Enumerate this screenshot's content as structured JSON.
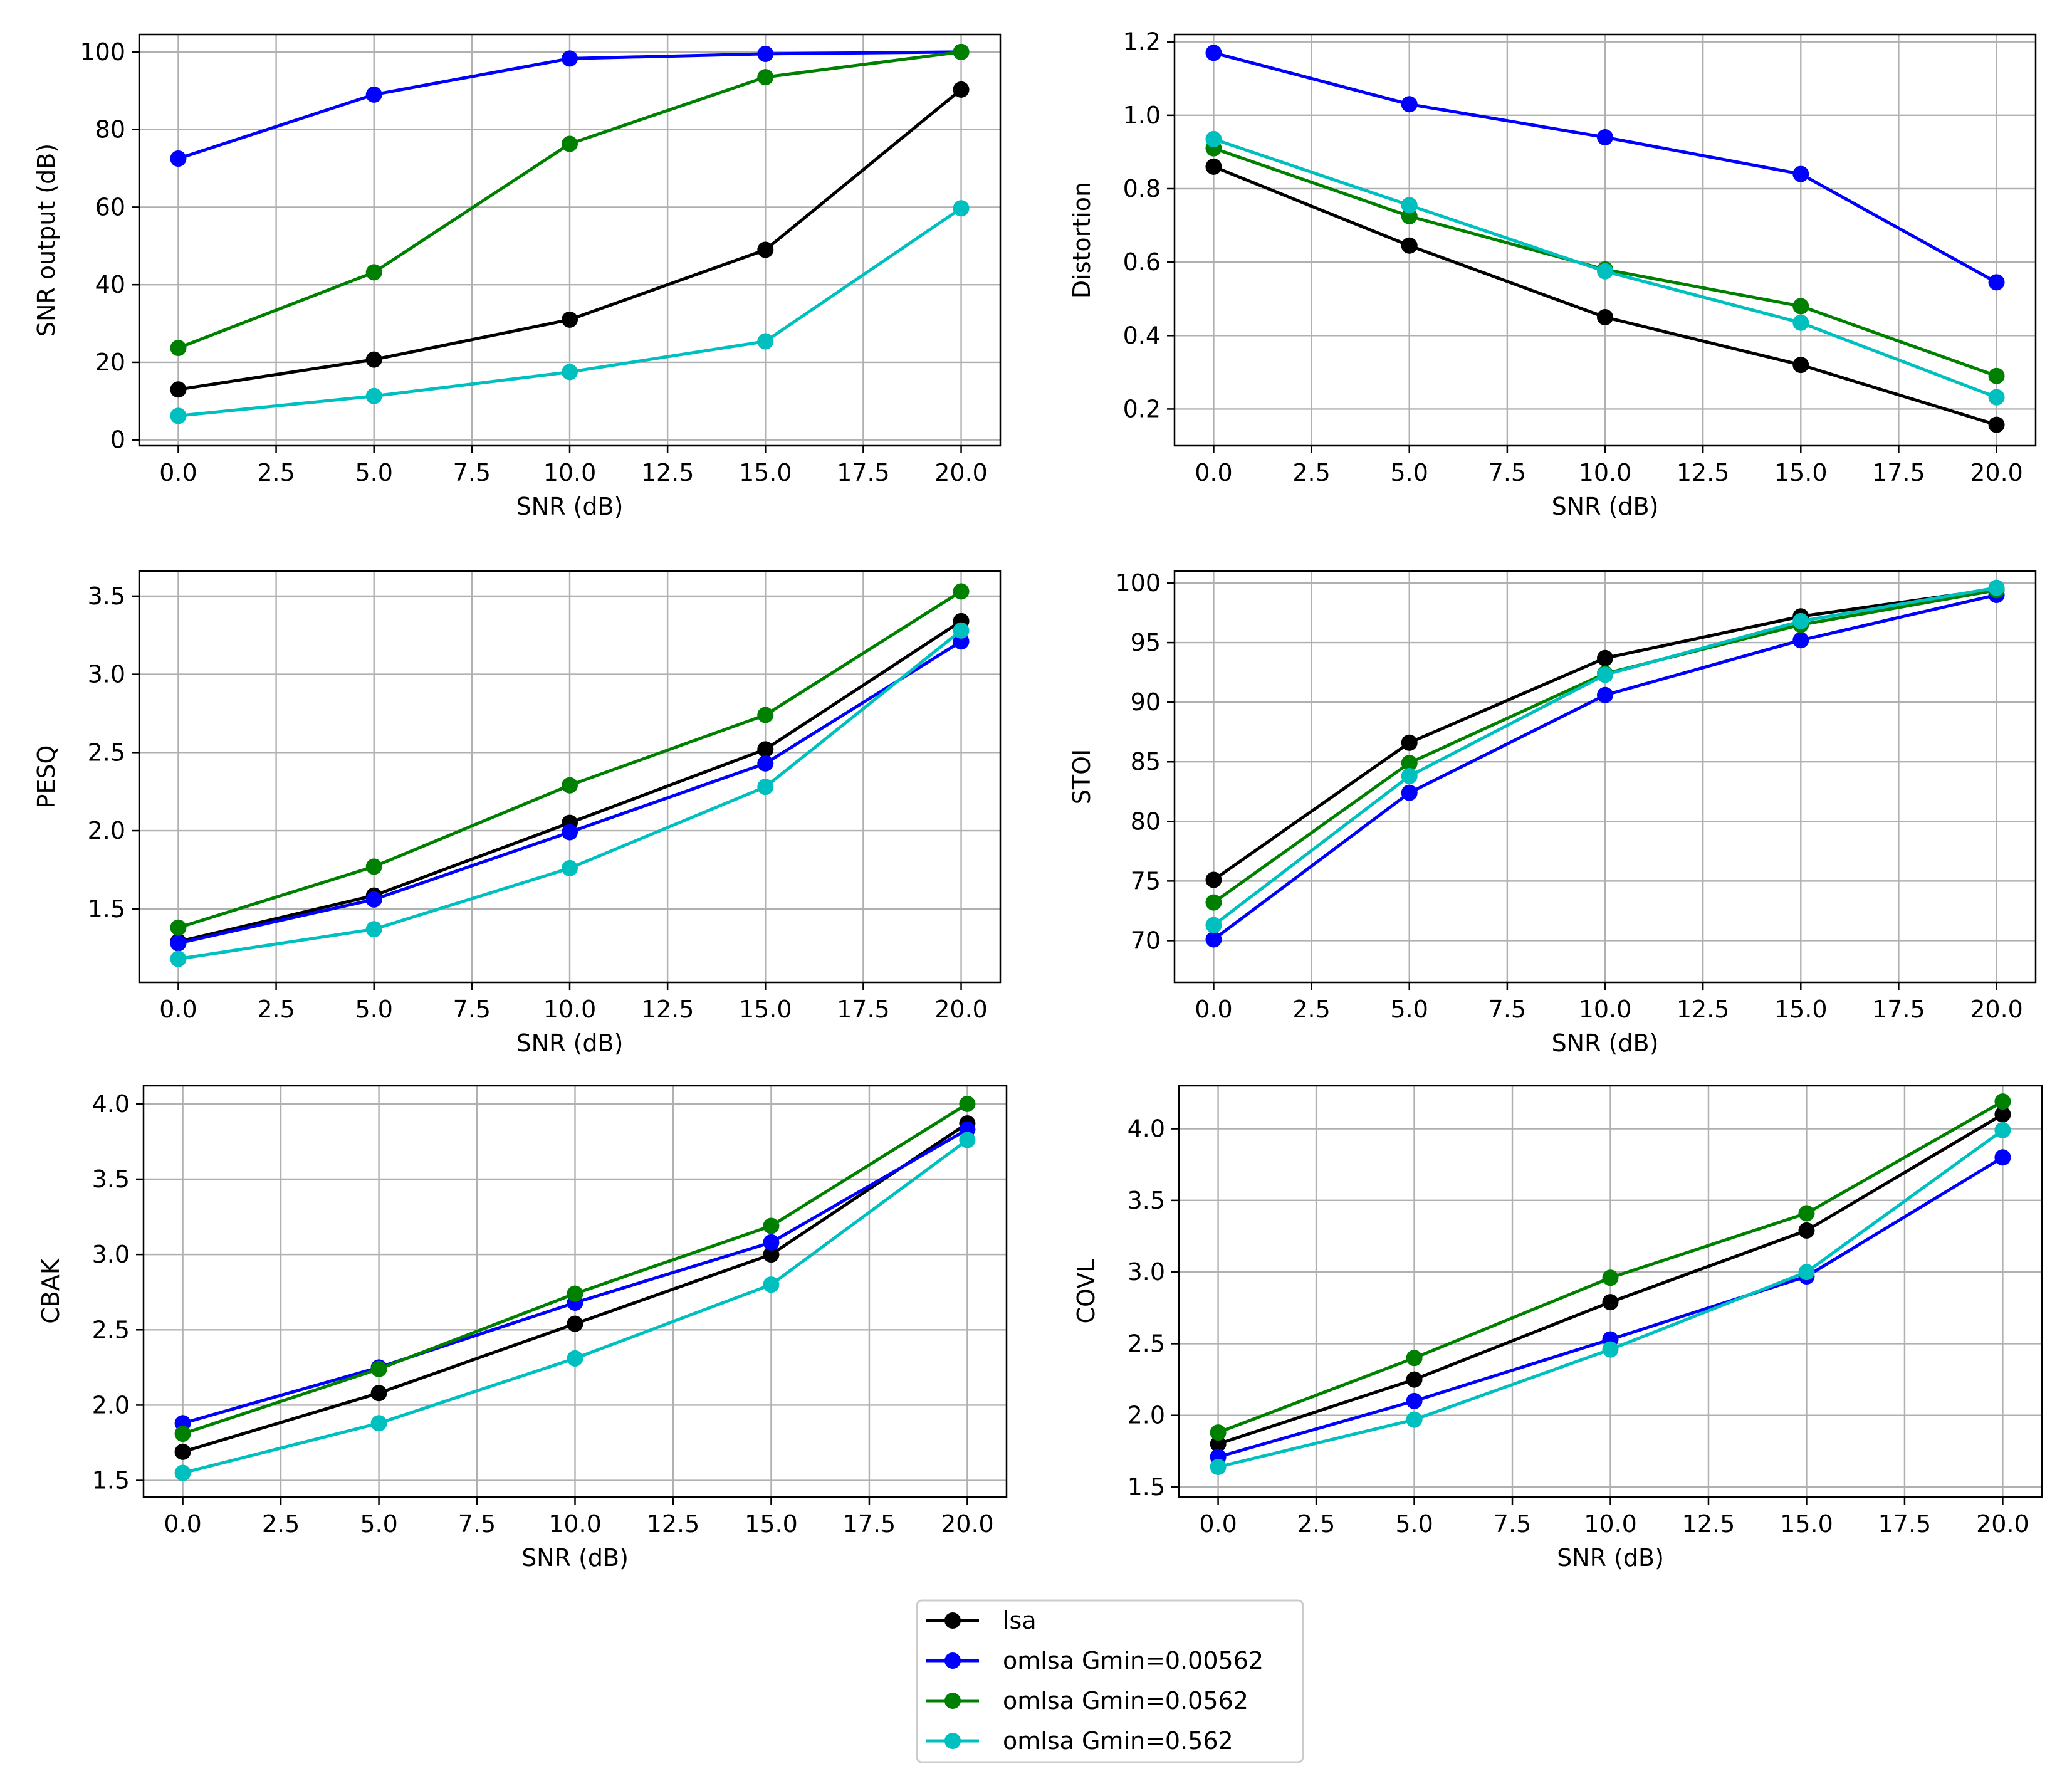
{
  "colors": {
    "lsa": "#000000",
    "omlsa_00562": "#0000ff",
    "omlsa_0562": "#008000",
    "omlsa_562": "#00bfbf",
    "grid": "#b0b0b0"
  },
  "legend": {
    "placement": "bottom-center",
    "entries": [
      "lsa",
      "omlsa Gmin=0.00562",
      "omlsa Gmin=0.0562",
      "omlsa Gmin=0.562"
    ]
  },
  "chart_data": [
    {
      "type": "line",
      "title": "",
      "xlabel": "SNR (dB)",
      "ylabel": "SNR output (dB)",
      "x": [
        0,
        5,
        10,
        15,
        20
      ],
      "xlim": [
        -1,
        21
      ],
      "ylim": [
        -1.5,
        104.5
      ],
      "xticks": [
        0,
        2.5,
        5,
        7.5,
        10,
        12.5,
        15,
        17.5,
        20
      ],
      "xtick_labels": [
        "0.0",
        "2.5",
        "5.0",
        "7.5",
        "10.0",
        "12.5",
        "15.0",
        "17.5",
        "20.0"
      ],
      "yticks": [
        0,
        20,
        40,
        60,
        80,
        100
      ],
      "ytick_labels": [
        "0",
        "20",
        "40",
        "60",
        "80",
        "100"
      ],
      "grid": true,
      "series": [
        {
          "name": "lsa",
          "values": [
            13,
            20.7,
            31,
            49,
            90.3
          ]
        },
        {
          "name": "omlsa Gmin=0.00562",
          "values": [
            72.5,
            89,
            98.3,
            99.5,
            100
          ]
        },
        {
          "name": "omlsa Gmin=0.0562",
          "values": [
            23.7,
            43.2,
            76.3,
            93.5,
            100
          ]
        },
        {
          "name": "omlsa Gmin=0.562",
          "values": [
            6.2,
            11.3,
            17.5,
            25.4,
            59.7
          ]
        }
      ]
    },
    {
      "type": "line",
      "title": "",
      "xlabel": "SNR (dB)",
      "ylabel": "Distortion",
      "x": [
        0,
        5,
        10,
        15,
        20
      ],
      "xlim": [
        -1,
        21
      ],
      "ylim": [
        0.1,
        1.22
      ],
      "xticks": [
        0,
        2.5,
        5,
        7.5,
        10,
        12.5,
        15,
        17.5,
        20
      ],
      "xtick_labels": [
        "0.0",
        "2.5",
        "5.0",
        "7.5",
        "10.0",
        "12.5",
        "15.0",
        "17.5",
        "20.0"
      ],
      "yticks": [
        0.2,
        0.4,
        0.6,
        0.8,
        1.0,
        1.2
      ],
      "ytick_labels": [
        "0.2",
        "0.4",
        "0.6",
        "0.8",
        "1.0",
        "1.2"
      ],
      "grid": true,
      "series": [
        {
          "name": "lsa",
          "values": [
            0.86,
            0.645,
            0.45,
            0.32,
            0.157
          ]
        },
        {
          "name": "omlsa Gmin=0.00562",
          "values": [
            1.17,
            1.03,
            0.94,
            0.84,
            0.545
          ]
        },
        {
          "name": "omlsa Gmin=0.0562",
          "values": [
            0.91,
            0.725,
            0.58,
            0.48,
            0.29
          ]
        },
        {
          "name": "omlsa Gmin=0.562",
          "values": [
            0.935,
            0.755,
            0.575,
            0.435,
            0.232
          ]
        }
      ]
    },
    {
      "type": "line",
      "title": "",
      "xlabel": "SNR (dB)",
      "ylabel": "PESQ",
      "x": [
        0,
        5,
        10,
        15,
        20
      ],
      "xlim": [
        -1,
        21
      ],
      "ylim": [
        1.03,
        3.66
      ],
      "xticks": [
        0,
        2.5,
        5,
        7.5,
        10,
        12.5,
        15,
        17.5,
        20
      ],
      "xtick_labels": [
        "0.0",
        "2.5",
        "5.0",
        "7.5",
        "10.0",
        "12.5",
        "15.0",
        "17.5",
        "20.0"
      ],
      "yticks": [
        1.5,
        2.0,
        2.5,
        3.0,
        3.5
      ],
      "ytick_labels": [
        "1.5",
        "2.0",
        "2.5",
        "3.0",
        "3.5"
      ],
      "grid": true,
      "series": [
        {
          "name": "lsa",
          "values": [
            1.29,
            1.585,
            2.05,
            2.52,
            3.34
          ]
        },
        {
          "name": "omlsa Gmin=0.00562",
          "values": [
            1.28,
            1.56,
            1.99,
            2.43,
            3.21
          ]
        },
        {
          "name": "omlsa Gmin=0.0562",
          "values": [
            1.38,
            1.77,
            2.29,
            2.74,
            3.53
          ]
        },
        {
          "name": "omlsa Gmin=0.562",
          "values": [
            1.18,
            1.37,
            1.76,
            2.28,
            3.28
          ]
        }
      ]
    },
    {
      "type": "line",
      "title": "",
      "xlabel": "SNR (dB)",
      "ylabel": "STOI",
      "x": [
        0,
        5,
        10,
        15,
        20
      ],
      "xlim": [
        -1,
        21
      ],
      "ylim": [
        66.5,
        101
      ],
      "xticks": [
        0,
        2.5,
        5,
        7.5,
        10,
        12.5,
        15,
        17.5,
        20
      ],
      "xtick_labels": [
        "0.0",
        "2.5",
        "5.0",
        "7.5",
        "10.0",
        "12.5",
        "15.0",
        "17.5",
        "20.0"
      ],
      "yticks": [
        70,
        75,
        80,
        85,
        90,
        95,
        100
      ],
      "ytick_labels": [
        "70",
        "75",
        "80",
        "85",
        "90",
        "95",
        "100"
      ],
      "grid": true,
      "series": [
        {
          "name": "lsa",
          "values": [
            75.1,
            86.6,
            93.7,
            97.2,
            99.5
          ]
        },
        {
          "name": "omlsa Gmin=0.00562",
          "values": [
            70.1,
            82.4,
            90.6,
            95.2,
            99.0
          ]
        },
        {
          "name": "omlsa Gmin=0.0562",
          "values": [
            73.2,
            84.9,
            92.4,
            96.5,
            99.4
          ]
        },
        {
          "name": "omlsa Gmin=0.562",
          "values": [
            71.3,
            83.8,
            92.3,
            96.8,
            99.6
          ]
        }
      ]
    },
    {
      "type": "line",
      "title": "",
      "xlabel": "SNR (dB)",
      "ylabel": "CBAK",
      "x": [
        0,
        5,
        10,
        15,
        20
      ],
      "xlim": [
        -1,
        21
      ],
      "ylim": [
        1.39,
        4.12
      ],
      "xticks": [
        0,
        2.5,
        5,
        7.5,
        10,
        12.5,
        15,
        17.5,
        20
      ],
      "xtick_labels": [
        "0.0",
        "2.5",
        "5.0",
        "7.5",
        "10.0",
        "12.5",
        "15.0",
        "17.5",
        "20.0"
      ],
      "yticks": [
        1.5,
        2.0,
        2.5,
        3.0,
        3.5,
        4.0
      ],
      "ytick_labels": [
        "1.5",
        "2.0",
        "2.5",
        "3.0",
        "3.5",
        "4.0"
      ],
      "grid": true,
      "series": [
        {
          "name": "lsa",
          "values": [
            1.69,
            2.08,
            2.54,
            3.0,
            3.87
          ]
        },
        {
          "name": "omlsa Gmin=0.00562",
          "values": [
            1.88,
            2.25,
            2.68,
            3.08,
            3.83
          ]
        },
        {
          "name": "omlsa Gmin=0.0562",
          "values": [
            1.81,
            2.24,
            2.74,
            3.19,
            4.0
          ]
        },
        {
          "name": "omlsa Gmin=0.562",
          "values": [
            1.55,
            1.88,
            2.31,
            2.8,
            3.76
          ]
        }
      ]
    },
    {
      "type": "line",
      "title": "",
      "xlabel": "SNR (dB)",
      "ylabel": "COVL",
      "x": [
        0,
        5,
        10,
        15,
        20
      ],
      "xlim": [
        -1,
        21
      ],
      "ylim": [
        1.43,
        4.3
      ],
      "xticks": [
        0,
        2.5,
        5,
        7.5,
        10,
        12.5,
        15,
        17.5,
        20
      ],
      "xtick_labels": [
        "0.0",
        "2.5",
        "5.0",
        "7.5",
        "10.0",
        "12.5",
        "15.0",
        "17.5",
        "20.0"
      ],
      "yticks": [
        1.5,
        2.0,
        2.5,
        3.0,
        3.5,
        4.0
      ],
      "ytick_labels": [
        "1.5",
        "2.0",
        "2.5",
        "3.0",
        "3.5",
        "4.0"
      ],
      "grid": true,
      "series": [
        {
          "name": "lsa",
          "values": [
            1.8,
            2.25,
            2.79,
            3.29,
            4.1
          ]
        },
        {
          "name": "omlsa Gmin=0.00562",
          "values": [
            1.71,
            2.1,
            2.53,
            2.97,
            3.8
          ]
        },
        {
          "name": "omlsa Gmin=0.0562",
          "values": [
            1.88,
            2.4,
            2.96,
            3.41,
            4.19
          ]
        },
        {
          "name": "omlsa Gmin=0.562",
          "values": [
            1.64,
            1.97,
            2.46,
            3.0,
            3.99
          ]
        }
      ]
    }
  ]
}
